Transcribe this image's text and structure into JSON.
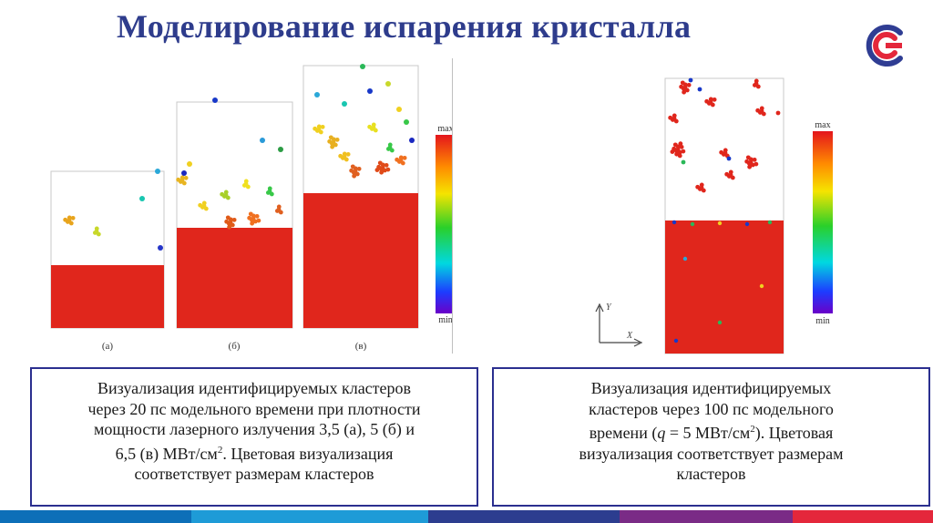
{
  "title": "Моделирование испарения кристалла",
  "left_figure": {
    "panel_labels": [
      "(а)",
      "(б)",
      "(в)"
    ],
    "colorbar": {
      "max_label": "max",
      "min_label": "min"
    }
  },
  "right_figure": {
    "colorbar": {
      "max_label": "max",
      "min_label": "min"
    },
    "axes": {
      "y_label": "Y",
      "x_label": "X"
    }
  },
  "captions": {
    "left": {
      "l1": "Визуализация идентифицируемых кластеров",
      "l2": "через 20 пс модельного времени при плотности",
      "l3": "мощности лазерного излучения 3,5 (а), 5 (б) и",
      "l4a": "6,5 (в) МВт/см",
      "l4sup": "2",
      "l4b": ". Цветовая визуализация",
      "l5": "соответствует размерам кластеров"
    },
    "right": {
      "l1": "Визуализация идентифицируемых",
      "l2": "кластеров через 100 пс модельного",
      "l3a": "времени  (",
      "l3q": "q",
      "l3b": " = 5 МВт/см",
      "l3sup": "2",
      "l3c": "). Цветовая",
      "l4": "визуализация соответствует размерам",
      "l5": "кластеров"
    }
  },
  "colors": {
    "title": "#2e3c8c",
    "caption_border": "#2b2f8f",
    "crystal": "#e0261c",
    "bottom_bar": [
      "#0d6fb8",
      "#1e9bd7",
      "#2c3d8f",
      "#7a2b86",
      "#e4273b"
    ]
  }
}
